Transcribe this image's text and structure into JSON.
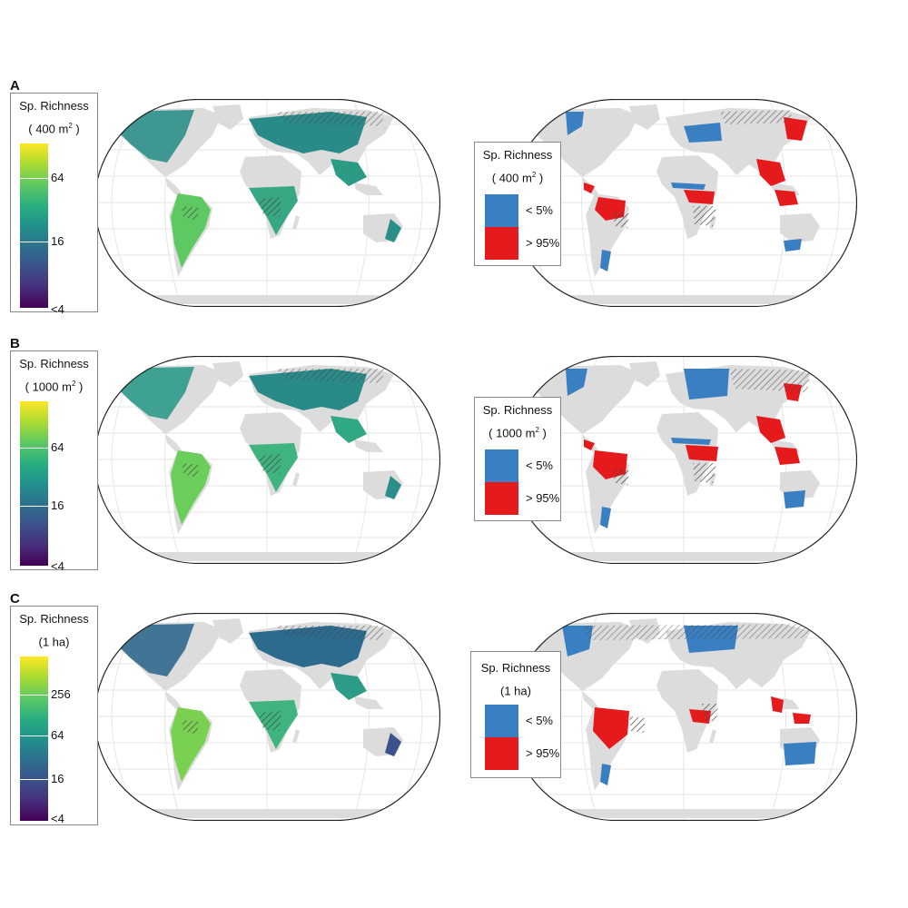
{
  "colors": {
    "land": "#dcdcdc",
    "ocean": "#ffffff",
    "grid": "#e6e6e6",
    "low": "#3a7fc1",
    "high": "#e41a1c",
    "hatch": "#444444"
  },
  "panels": [
    {
      "label": "A",
      "richness_legend": {
        "title": "Sp. Richness",
        "unit": "( 400 m",
        "unit_sup": "2",
        "unit_end": " )",
        "ticks": [
          "64",
          "16",
          "<4"
        ]
      },
      "extremes_legend": {
        "title": "Sp. Richness",
        "unit": "( 400 m",
        "unit_sup": "2",
        "unit_end": " )",
        "low_label": "< 5%",
        "high_label": "> 95%"
      }
    },
    {
      "label": "B",
      "richness_legend": {
        "title": "Sp. Richness",
        "unit": "( 1000 m",
        "unit_sup": "2",
        "unit_end": " )",
        "ticks": [
          "64",
          "16",
          "<4"
        ]
      },
      "extremes_legend": {
        "title": "Sp. Richness",
        "unit": "( 1000 m",
        "unit_sup": "2",
        "unit_end": " )",
        "low_label": "< 5%",
        "high_label": "> 95%"
      }
    },
    {
      "label": "C",
      "richness_legend": {
        "title": "Sp. Richness",
        "unit": "(1 ha)",
        "unit_sup": "",
        "unit_end": "",
        "ticks": [
          "256",
          "64",
          "16",
          "<4"
        ]
      },
      "extremes_legend": {
        "title": "Sp. Richness",
        "unit": "(1 ha)",
        "unit_sup": "",
        "unit_end": "",
        "low_label": "< 5%",
        "high_label": "> 95%"
      }
    }
  ]
}
